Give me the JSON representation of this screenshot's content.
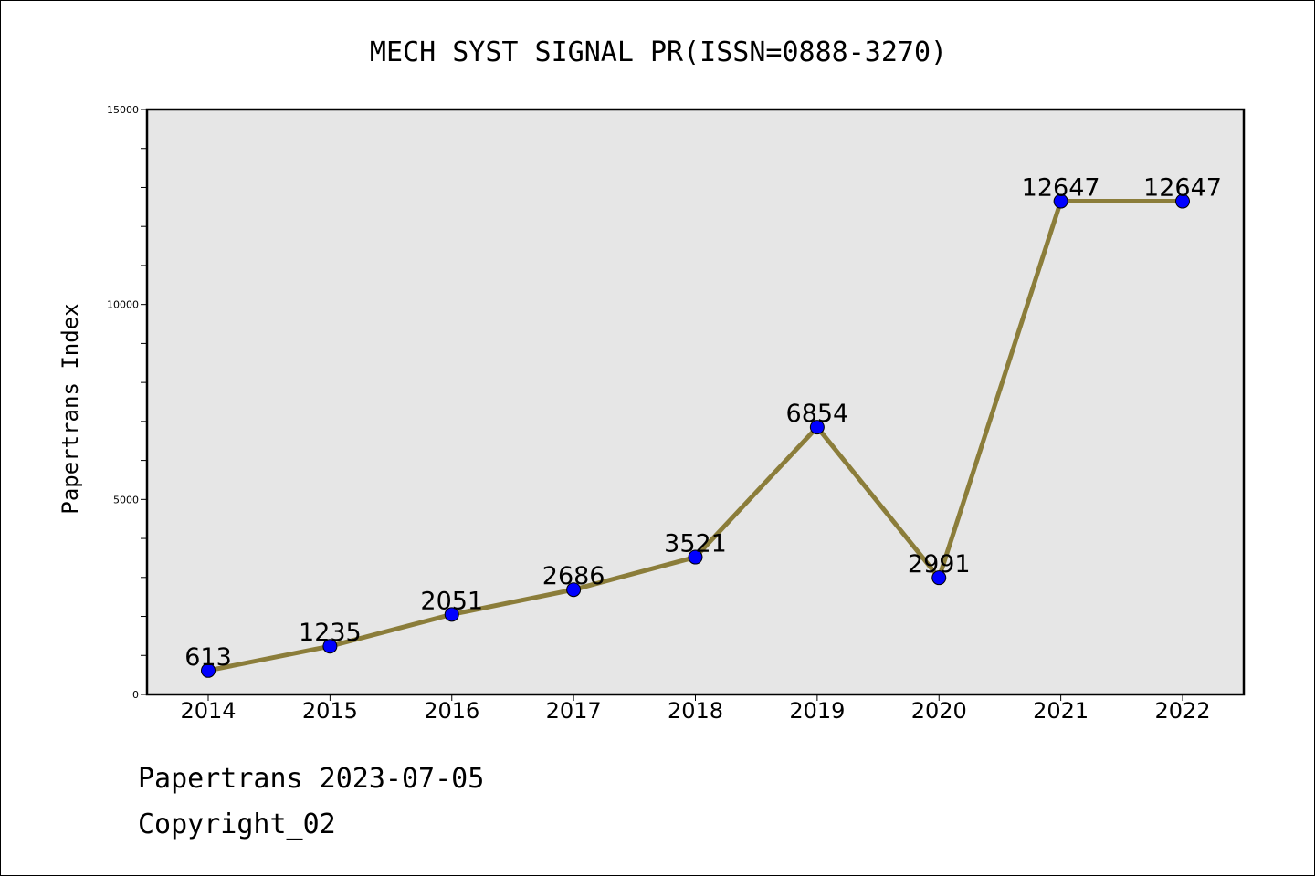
{
  "colors": {
    "plot_background": "#e6e6e6",
    "line": "#8b7d3a",
    "marker": "#0000ff"
  },
  "chart_data": {
    "type": "line",
    "title": "MECH SYST SIGNAL PR(ISSN=0888-3270)",
    "xlabel": "",
    "ylabel": "Papertrans Index",
    "categories": [
      "2014",
      "2015",
      "2016",
      "2017",
      "2018",
      "2019",
      "2020",
      "2021",
      "2022"
    ],
    "values": [
      613,
      1235,
      2051,
      2686,
      3521,
      6854,
      2991,
      12647,
      12647
    ],
    "data_labels": [
      "613",
      "1235",
      "2051",
      "2686",
      "3521",
      "6854",
      "2991",
      "12647",
      "12647"
    ],
    "ylim": [
      0,
      15000
    ],
    "yticks": [
      0,
      5000,
      10000,
      15000
    ],
    "ytick_labels": [
      "0",
      "5000",
      "10000",
      "15000"
    ],
    "minor_yticks": [
      1000,
      2000,
      3000,
      4000,
      6000,
      7000,
      8000,
      9000,
      11000,
      12000,
      13000,
      14000
    ],
    "grid": false,
    "legend": "none"
  },
  "footer": {
    "line1": "Papertrans 2023-07-05",
    "line2": "Copyright_02"
  }
}
